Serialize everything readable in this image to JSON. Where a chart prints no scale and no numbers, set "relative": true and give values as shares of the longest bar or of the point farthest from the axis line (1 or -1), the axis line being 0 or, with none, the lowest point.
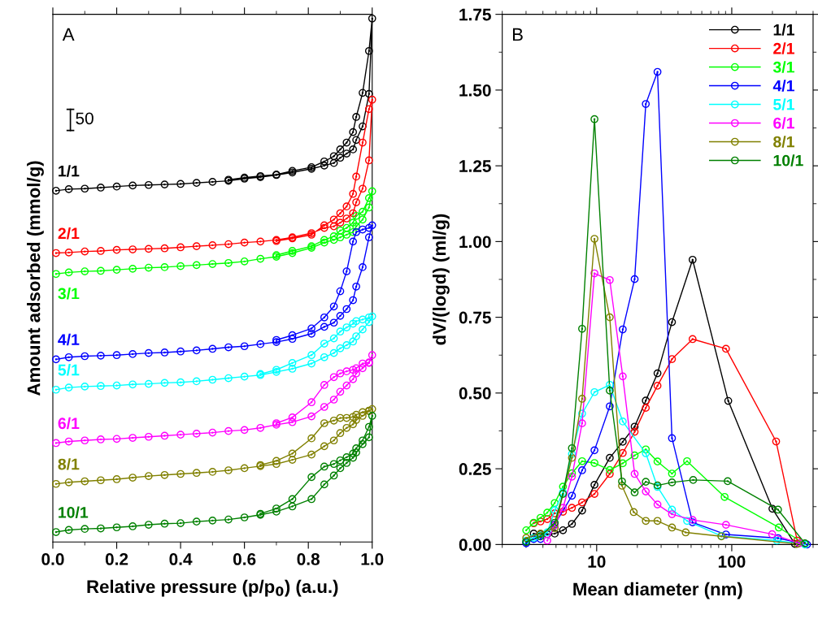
{
  "chart_data": [
    {
      "type": "line",
      "relative": true,
      "xlabel": "Relative pressure (p/p$_{0}$) (a.u.)",
      "ylabel": "Amount adsorbed (mmol/g)",
      "xlim": [
        0,
        1.0
      ],
      "xticks": [
        {
          "value": 0,
          "label": "0.0"
        },
        {
          "value": 0.2,
          "label": "0.2"
        },
        {
          "value": 0.4,
          "label": "0.4"
        },
        {
          "value": 0.6,
          "label": "0.6"
        },
        {
          "value": 0.8,
          "label": "0.8"
        },
        {
          "value": 1.0,
          "label": "1.0"
        }
      ],
      "tick_labels": "x",
      "marker": "circle",
      "line_style": "solid",
      "annotations": [
        "A",
        "50"
      ],
      "series": [
        {
          "name": "1/1",
          "color": "#000000",
          "x": [
            0.01,
            0.05,
            0.1,
            0.15,
            0.2,
            0.25,
            0.3,
            0.35,
            0.4,
            0.45,
            0.5,
            0.55,
            0.6,
            0.65,
            0.7,
            0.75,
            0.81,
            0.85,
            0.88,
            0.9,
            0.92,
            0.94,
            0.95,
            0.97,
            0.99,
            1.0,
            0.99,
            0.97,
            0.95,
            0.94,
            0.92,
            0.9,
            0.88,
            0.85,
            0.81,
            0.75,
            0.7,
            0.65,
            0.6,
            0.55
          ],
          "values": [
            0.671,
            0.674,
            0.675,
            0.677,
            0.679,
            0.681,
            0.682,
            0.683,
            0.684,
            0.686,
            0.688,
            0.69,
            0.694,
            0.697,
            0.701,
            0.706,
            0.713,
            0.719,
            0.724,
            0.734,
            0.742,
            0.75,
            0.768,
            0.794,
            0.856,
            1.0,
            0.938,
            0.858,
            0.812,
            0.783,
            0.763,
            0.75,
            0.737,
            0.727,
            0.716,
            0.709,
            0.702,
            0.699,
            0.696,
            0.692
          ]
        },
        {
          "name": "2/1",
          "color": "#ff0000",
          "x": [
            0.01,
            0.05,
            0.1,
            0.15,
            0.2,
            0.25,
            0.3,
            0.35,
            0.4,
            0.45,
            0.5,
            0.55,
            0.6,
            0.65,
            0.7,
            0.75,
            0.81,
            0.85,
            0.88,
            0.9,
            0.92,
            0.94,
            0.95,
            0.97,
            0.99,
            1.0,
            0.99,
            0.97,
            0.95,
            0.94,
            0.92,
            0.9,
            0.88,
            0.85,
            0.81,
            0.75,
            0.7
          ],
          "values": [
            0.552,
            0.553,
            0.555,
            0.556,
            0.558,
            0.559,
            0.56,
            0.561,
            0.563,
            0.565,
            0.567,
            0.569,
            0.572,
            0.574,
            0.577,
            0.582,
            0.59,
            0.6,
            0.603,
            0.61,
            0.618,
            0.628,
            0.649,
            0.675,
            0.729,
            0.845,
            0.827,
            0.763,
            0.698,
            0.665,
            0.641,
            0.628,
            0.616,
            0.605,
            0.587,
            0.58,
            0.575
          ]
        },
        {
          "name": "3/1",
          "color": "#00ff00",
          "x": [
            0.01,
            0.05,
            0.1,
            0.15,
            0.2,
            0.25,
            0.3,
            0.35,
            0.4,
            0.45,
            0.5,
            0.55,
            0.6,
            0.65,
            0.7,
            0.75,
            0.81,
            0.85,
            0.88,
            0.9,
            0.92,
            0.94,
            0.95,
            0.97,
            0.99,
            1.0,
            0.99,
            0.97,
            0.95,
            0.94,
            0.92,
            0.9,
            0.88,
            0.85,
            0.81,
            0.75,
            0.7
          ],
          "values": [
            0.512,
            0.515,
            0.517,
            0.518,
            0.52,
            0.522,
            0.524,
            0.525,
            0.527,
            0.529,
            0.531,
            0.533,
            0.536,
            0.541,
            0.545,
            0.552,
            0.562,
            0.572,
            0.577,
            0.582,
            0.587,
            0.592,
            0.603,
            0.616,
            0.639,
            0.67,
            0.657,
            0.631,
            0.623,
            0.61,
            0.6,
            0.595,
            0.584,
            0.577,
            0.565,
            0.556,
            0.548
          ]
        },
        {
          "name": "4/1",
          "color": "#0000ff",
          "x": [
            0.01,
            0.05,
            0.1,
            0.15,
            0.2,
            0.25,
            0.3,
            0.35,
            0.4,
            0.45,
            0.5,
            0.55,
            0.6,
            0.65,
            0.7,
            0.75,
            0.81,
            0.85,
            0.88,
            0.9,
            0.92,
            0.94,
            0.95,
            0.97,
            0.99,
            1.0,
            0.99,
            0.97,
            0.95,
            0.94,
            0.92,
            0.9,
            0.88,
            0.85,
            0.81,
            0.75,
            0.7
          ],
          "values": [
            0.349,
            0.353,
            0.355,
            0.356,
            0.357,
            0.359,
            0.361,
            0.362,
            0.364,
            0.366,
            0.369,
            0.372,
            0.374,
            0.378,
            0.382,
            0.388,
            0.398,
            0.411,
            0.419,
            0.432,
            0.445,
            0.462,
            0.488,
            0.525,
            0.582,
            0.605,
            0.6,
            0.597,
            0.592,
            0.574,
            0.517,
            0.479,
            0.45,
            0.429,
            0.408,
            0.395,
            0.386
          ]
        },
        {
          "name": "5/1",
          "color": "#00ffff",
          "x": [
            0.01,
            0.05,
            0.1,
            0.15,
            0.2,
            0.25,
            0.3,
            0.35,
            0.4,
            0.45,
            0.5,
            0.55,
            0.6,
            0.65,
            0.7,
            0.75,
            0.81,
            0.85,
            0.88,
            0.9,
            0.92,
            0.94,
            0.95,
            0.97,
            0.99,
            1.0,
            0.99,
            0.97,
            0.95,
            0.94,
            0.92,
            0.9,
            0.88,
            0.85,
            0.81,
            0.75,
            0.7,
            0.65
          ],
          "values": [
            0.291,
            0.295,
            0.297,
            0.298,
            0.299,
            0.301,
            0.302,
            0.304,
            0.305,
            0.307,
            0.31,
            0.313,
            0.316,
            0.319,
            0.325,
            0.331,
            0.341,
            0.353,
            0.361,
            0.37,
            0.376,
            0.383,
            0.393,
            0.406,
            0.42,
            0.431,
            0.429,
            0.425,
            0.422,
            0.417,
            0.41,
            0.402,
            0.389,
            0.379,
            0.357,
            0.342,
            0.329,
            0.321
          ]
        },
        {
          "name": "6/1",
          "color": "#ff00ff",
          "x": [
            0.01,
            0.05,
            0.1,
            0.15,
            0.2,
            0.25,
            0.3,
            0.35,
            0.4,
            0.45,
            0.5,
            0.55,
            0.6,
            0.65,
            0.7,
            0.75,
            0.81,
            0.85,
            0.88,
            0.9,
            0.92,
            0.94,
            0.95,
            0.97,
            0.99,
            1.0,
            0.99,
            0.97,
            0.95,
            0.94,
            0.92,
            0.9,
            0.88,
            0.85,
            0.81,
            0.75,
            0.7
          ],
          "values": [
            0.189,
            0.192,
            0.194,
            0.196,
            0.197,
            0.199,
            0.201,
            0.203,
            0.205,
            0.207,
            0.209,
            0.212,
            0.214,
            0.218,
            0.224,
            0.229,
            0.24,
            0.258,
            0.272,
            0.287,
            0.299,
            0.311,
            0.322,
            0.332,
            0.342,
            0.357,
            0.343,
            0.341,
            0.332,
            0.329,
            0.326,
            0.322,
            0.315,
            0.3,
            0.267,
            0.238,
            0.227
          ]
        },
        {
          "name": "8/1",
          "color": "#808000",
          "x": [
            0.01,
            0.05,
            0.1,
            0.15,
            0.2,
            0.25,
            0.3,
            0.35,
            0.4,
            0.45,
            0.5,
            0.55,
            0.6,
            0.65,
            0.7,
            0.75,
            0.81,
            0.85,
            0.88,
            0.9,
            0.92,
            0.94,
            0.95,
            0.97,
            0.99,
            1.0,
            0.99,
            0.97,
            0.95,
            0.94,
            0.92,
            0.9,
            0.88,
            0.85,
            0.81,
            0.75,
            0.7,
            0.65
          ],
          "values": [
            0.111,
            0.114,
            0.116,
            0.118,
            0.12,
            0.123,
            0.126,
            0.128,
            0.13,
            0.132,
            0.134,
            0.137,
            0.141,
            0.145,
            0.149,
            0.157,
            0.167,
            0.183,
            0.194,
            0.208,
            0.218,
            0.225,
            0.233,
            0.241,
            0.25,
            0.254,
            0.251,
            0.248,
            0.243,
            0.239,
            0.237,
            0.237,
            0.232,
            0.227,
            0.198,
            0.169,
            0.155,
            0.147
          ]
        },
        {
          "name": "10/1",
          "color": "#008000",
          "x": [
            0.01,
            0.05,
            0.1,
            0.15,
            0.2,
            0.25,
            0.3,
            0.35,
            0.4,
            0.45,
            0.5,
            0.55,
            0.6,
            0.65,
            0.7,
            0.75,
            0.81,
            0.85,
            0.88,
            0.9,
            0.92,
            0.94,
            0.95,
            0.97,
            0.99,
            1.0,
            0.99,
            0.97,
            0.95,
            0.94,
            0.92,
            0.9,
            0.88,
            0.85,
            0.81,
            0.75,
            0.7,
            0.65
          ],
          "values": [
            0.019,
            0.023,
            0.025,
            0.026,
            0.028,
            0.03,
            0.033,
            0.035,
            0.036,
            0.039,
            0.041,
            0.043,
            0.047,
            0.052,
            0.058,
            0.068,
            0.082,
            0.11,
            0.127,
            0.141,
            0.151,
            0.161,
            0.171,
            0.187,
            0.2,
            0.241,
            0.22,
            0.194,
            0.179,
            0.169,
            0.162,
            0.156,
            0.149,
            0.144,
            0.124,
            0.082,
            0.064,
            0.054
          ]
        }
      ]
    },
    {
      "type": "line",
      "xlabel": "Mean diameter (nm)",
      "ylabel": "dV/(logd) (ml/g)",
      "log": "x",
      "xlim": [
        2,
        400
      ],
      "xticks": [
        10,
        100
      ],
      "ylim": [
        0,
        1.75
      ],
      "yticks": [
        {
          "value": 0,
          "label": "0.00"
        },
        {
          "value": 0.25,
          "label": "0.25"
        },
        {
          "value": 0.5,
          "label": "0.50"
        },
        {
          "value": 0.75,
          "label": "0.75"
        },
        {
          "value": 1.0,
          "label": "1.00"
        },
        {
          "value": 1.25,
          "label": "1.25"
        },
        {
          "value": 1.5,
          "label": "1.50"
        },
        {
          "value": 1.75,
          "label": "1.75"
        }
      ],
      "legend": "top right",
      "marker": "circle",
      "line_style": "solid",
      "annotations": [
        "B"
      ],
      "series": [
        {
          "name": "1/1",
          "color": "#000000",
          "x": [
            3.01,
            3.42,
            3.84,
            4.31,
            4.89,
            5.63,
            6.56,
            7.8,
            9.63,
            12.5,
            15.6,
            19.1,
            23.1,
            28.2,
            36.1,
            51.3,
            94.2,
            200,
            293
          ],
          "values": [
            0.009,
            0.036,
            0.034,
            0.034,
            0.036,
            0.047,
            0.068,
            0.112,
            0.197,
            0.286,
            0.339,
            0.389,
            0.475,
            0.565,
            0.734,
            0.94,
            0.474,
            0.118,
            0.002
          ]
        },
        {
          "name": "2/1",
          "color": "#ff0000",
          "x": [
            3.42,
            3.84,
            4.31,
            4.89,
            5.63,
            6.56,
            7.8,
            9.63,
            12.5,
            15.6,
            19.1,
            23.1,
            28.2,
            36.1,
            51.3,
            90.6,
            213,
            305
          ],
          "values": [
            0.07,
            0.076,
            0.084,
            0.103,
            0.108,
            0.121,
            0.139,
            0.167,
            0.233,
            0.302,
            0.372,
            0.451,
            0.524,
            0.612,
            0.678,
            0.646,
            0.34,
            0.013
          ]
        },
        {
          "name": "3/1",
          "color": "#00ff00",
          "x": [
            3.01,
            3.42,
            3.84,
            4.31,
            4.89,
            5.63,
            6.56,
            7.8,
            9.63,
            12.5,
            15.6,
            19.1,
            23.1,
            28.2,
            36.1,
            46.7,
            88.5,
            223,
            348
          ],
          "values": [
            0.047,
            0.072,
            0.088,
            0.105,
            0.137,
            0.191,
            0.235,
            0.275,
            0.269,
            0.246,
            0.268,
            0.294,
            0.314,
            0.274,
            0.234,
            0.275,
            0.157,
            0.056,
            0.002
          ]
        },
        {
          "name": "4/1",
          "color": "#0000ff",
          "x": [
            3.01,
            3.42,
            3.84,
            4.89,
            6.56,
            7.8,
            9.63,
            12.5,
            15.6,
            19.1,
            23.1,
            28.2,
            36.1,
            51.3,
            90.6,
            220,
            361
          ],
          "values": [
            0.004,
            0.018,
            0.018,
            0.066,
            0.161,
            0.245,
            0.311,
            0.456,
            0.71,
            0.876,
            1.454,
            1.56,
            0.351,
            0.073,
            0.033,
            0.021,
            0.0
          ]
        },
        {
          "name": "5/1",
          "color": "#00ffff",
          "x": [
            3.01,
            3.42,
            3.84,
            4.31,
            4.89,
            5.63,
            6.56,
            7.8,
            9.63,
            12.5,
            15.6,
            23.1,
            28.2,
            36.1,
            46.7,
            83.8,
            216,
            348
          ],
          "values": [
            0.013,
            0.022,
            0.029,
            0.04,
            0.113,
            0.172,
            0.299,
            0.432,
            0.503,
            0.527,
            0.406,
            0.301,
            0.19,
            0.115,
            0.078,
            0.028,
            0.013,
            0.0
          ]
        },
        {
          "name": "6/1",
          "color": "#ff00ff",
          "x": [
            4.31,
            4.89,
            5.63,
            6.56,
            7.8,
            9.63,
            12.5,
            15.6,
            19.1,
            23.1,
            28.2,
            36.1,
            51.3,
            90.6,
            199,
            317
          ],
          "values": [
            0.013,
            0.063,
            0.121,
            0.224,
            0.4,
            0.895,
            0.873,
            0.555,
            0.233,
            0.175,
            0.132,
            0.1,
            0.081,
            0.065,
            0.034,
            0.004
          ]
        },
        {
          "name": "8/1",
          "color": "#808000",
          "x": [
            3.01,
            3.84,
            4.89,
            6.56,
            7.8,
            9.63,
            12.5,
            15.4,
            18.8,
            23.1,
            28.2,
            36.1,
            45.6,
            83.8,
            305
          ],
          "values": [
            0.022,
            0.036,
            0.054,
            0.286,
            0.481,
            1.009,
            0.75,
            0.194,
            0.107,
            0.078,
            0.078,
            0.056,
            0.04,
            0.027,
            0.002
          ]
        },
        {
          "name": "10/1",
          "color": "#008000",
          "x": [
            3.01,
            3.84,
            4.89,
            5.63,
            6.56,
            7.8,
            9.63,
            12.5,
            15.4,
            19.1,
            23.1,
            28.2,
            36.1,
            51.8,
            93.3,
            220,
            348
          ],
          "values": [
            0.009,
            0.027,
            0.072,
            0.167,
            0.318,
            0.712,
            1.404,
            0.508,
            0.208,
            0.172,
            0.207,
            0.195,
            0.205,
            0.213,
            0.209,
            0.115,
            0.004
          ]
        }
      ]
    }
  ]
}
